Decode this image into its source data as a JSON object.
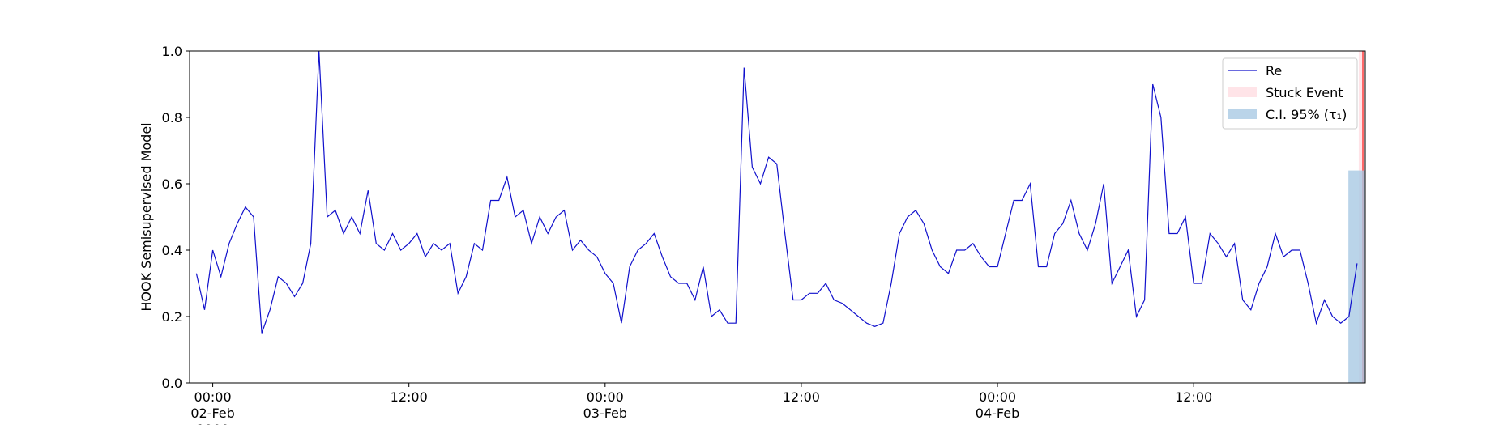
{
  "chart_data": {
    "type": "line",
    "ylabel": "HOOK Semisupervised Model",
    "x": [
      "1900-02-01 23:00",
      "1900-02-01 23:30",
      "1900-02-02 00:00",
      "1900-02-02 00:30",
      "1900-02-02 01:00",
      "1900-02-02 01:30",
      "1900-02-02 02:00",
      "1900-02-02 02:30",
      "1900-02-02 03:00",
      "1900-02-02 03:30",
      "1900-02-02 04:00",
      "1900-02-02 04:30",
      "1900-02-02 05:00",
      "1900-02-02 05:30",
      "1900-02-02 06:00",
      "1900-02-02 06:30",
      "1900-02-02 07:00",
      "1900-02-02 07:30",
      "1900-02-02 08:00",
      "1900-02-02 08:30",
      "1900-02-02 09:00",
      "1900-02-02 09:30",
      "1900-02-02 10:00",
      "1900-02-02 10:30",
      "1900-02-02 11:00",
      "1900-02-02 11:30",
      "1900-02-02 12:00",
      "1900-02-02 12:30",
      "1900-02-02 13:00",
      "1900-02-02 13:30",
      "1900-02-02 14:00",
      "1900-02-02 14:30",
      "1900-02-02 15:00",
      "1900-02-02 15:30",
      "1900-02-02 16:00",
      "1900-02-02 16:30",
      "1900-02-02 17:00",
      "1900-02-02 17:30",
      "1900-02-02 18:00",
      "1900-02-02 18:30",
      "1900-02-02 19:00",
      "1900-02-02 19:30",
      "1900-02-02 20:00",
      "1900-02-02 20:30",
      "1900-02-02 21:00",
      "1900-02-02 21:30",
      "1900-02-02 22:00",
      "1900-02-02 22:30",
      "1900-02-02 23:00",
      "1900-02-02 23:30",
      "1900-02-03 00:00",
      "1900-02-03 00:30",
      "1900-02-03 01:00",
      "1900-02-03 01:30",
      "1900-02-03 02:00",
      "1900-02-03 02:30",
      "1900-02-03 03:00",
      "1900-02-03 03:30",
      "1900-02-03 04:00",
      "1900-02-03 04:30",
      "1900-02-03 05:00",
      "1900-02-03 05:30",
      "1900-02-03 06:00",
      "1900-02-03 06:30",
      "1900-02-03 07:00",
      "1900-02-03 07:30",
      "1900-02-03 08:00",
      "1900-02-03 08:30",
      "1900-02-03 09:00",
      "1900-02-03 09:30",
      "1900-02-03 10:00",
      "1900-02-03 10:30",
      "1900-02-03 11:00",
      "1900-02-03 11:30",
      "1900-02-03 12:00",
      "1900-02-03 12:30",
      "1900-02-03 13:00",
      "1900-02-03 13:30",
      "1900-02-03 14:00",
      "1900-02-03 14:30",
      "1900-02-03 15:00",
      "1900-02-03 15:30",
      "1900-02-03 16:00",
      "1900-02-03 16:30",
      "1900-02-03 17:00",
      "1900-02-03 17:30",
      "1900-02-03 18:00",
      "1900-02-03 18:30",
      "1900-02-03 19:00",
      "1900-02-03 19:30",
      "1900-02-03 20:00",
      "1900-02-03 20:30",
      "1900-02-03 21:00",
      "1900-02-03 21:30",
      "1900-02-03 22:00",
      "1900-02-03 22:30",
      "1900-02-03 23:00",
      "1900-02-03 23:30",
      "1900-02-04 00:00",
      "1900-02-04 00:30",
      "1900-02-04 01:00",
      "1900-02-04 01:30",
      "1900-02-04 02:00",
      "1900-02-04 02:30",
      "1900-02-04 03:00",
      "1900-02-04 03:30",
      "1900-02-04 04:00",
      "1900-02-04 04:30",
      "1900-02-04 05:00",
      "1900-02-04 05:30",
      "1900-02-04 06:00",
      "1900-02-04 06:30",
      "1900-02-04 07:00",
      "1900-02-04 07:30",
      "1900-02-04 08:00",
      "1900-02-04 08:30",
      "1900-02-04 09:00",
      "1900-02-04 09:30",
      "1900-02-04 10:00",
      "1900-02-04 10:30",
      "1900-02-04 11:00",
      "1900-02-04 11:30",
      "1900-02-04 12:00",
      "1900-02-04 12:30",
      "1900-02-04 13:00",
      "1900-02-04 13:30",
      "1900-02-04 14:00",
      "1900-02-04 14:30",
      "1900-02-04 15:00",
      "1900-02-04 15:30",
      "1900-02-04 16:00",
      "1900-02-04 16:30",
      "1900-02-04 17:00",
      "1900-02-04 17:30",
      "1900-02-04 18:00",
      "1900-02-04 18:30",
      "1900-02-04 19:00",
      "1900-02-04 19:30",
      "1900-02-04 20:00",
      "1900-02-04 20:30",
      "1900-02-04 21:00",
      "1900-02-04 21:30",
      "1900-02-04 22:00"
    ],
    "series": [
      {
        "name": "Re",
        "color": "#1010cc",
        "values": [
          0.33,
          0.22,
          0.4,
          0.32,
          0.42,
          0.48,
          0.53,
          0.5,
          0.15,
          0.22,
          0.32,
          0.3,
          0.26,
          0.3,
          0.42,
          1.0,
          0.5,
          0.52,
          0.45,
          0.5,
          0.45,
          0.58,
          0.42,
          0.4,
          0.45,
          0.4,
          0.42,
          0.45,
          0.38,
          0.42,
          0.4,
          0.42,
          0.27,
          0.32,
          0.42,
          0.4,
          0.55,
          0.55,
          0.62,
          0.5,
          0.52,
          0.42,
          0.5,
          0.45,
          0.5,
          0.52,
          0.4,
          0.43,
          0.4,
          0.38,
          0.33,
          0.3,
          0.18,
          0.35,
          0.4,
          0.42,
          0.45,
          0.38,
          0.32,
          0.3,
          0.3,
          0.25,
          0.35,
          0.2,
          0.22,
          0.18,
          0.18,
          0.95,
          0.65,
          0.6,
          0.68,
          0.66,
          0.45,
          0.25,
          0.25,
          0.27,
          0.27,
          0.3,
          0.25,
          0.24,
          0.22,
          0.2,
          0.18,
          0.17,
          0.18,
          0.3,
          0.45,
          0.5,
          0.52,
          0.48,
          0.4,
          0.35,
          0.33,
          0.4,
          0.4,
          0.42,
          0.38,
          0.35,
          0.35,
          0.45,
          0.55,
          0.55,
          0.6,
          0.35,
          0.35,
          0.45,
          0.48,
          0.55,
          0.45,
          0.4,
          0.48,
          0.6,
          0.3,
          0.35,
          0.4,
          0.2,
          0.25,
          0.9,
          0.8,
          0.45,
          0.45,
          0.5,
          0.3,
          0.3,
          0.45,
          0.42,
          0.38,
          0.42,
          0.25,
          0.22,
          0.3,
          0.35,
          0.45,
          0.38,
          0.4,
          0.4,
          0.3,
          0.18,
          0.25,
          0.2,
          0.18,
          0.2,
          0.36
        ]
      }
    ],
    "spans": [
      {
        "name": "Stuck Event",
        "color": "#ffdde2",
        "edge": "#ff4040",
        "x": [
          "1900-02-04 22:06",
          "1900-02-04 22:30"
        ]
      },
      {
        "name": "C.I. 95% (τ₁)",
        "color": "#a9c9e4",
        "x": [
          "1900-02-04 21:28",
          "1900-02-04 22:30"
        ],
        "y": [
          0,
          0.64
        ]
      }
    ],
    "xlim": [
      "1900-02-01 22:35",
      "1900-02-04 22:30"
    ],
    "xticks": [
      {
        "value": "1900-02-02 00:00",
        "label": "00:00\n02-Feb\n1900"
      },
      {
        "value": "1900-02-02 12:00",
        "label": "12:00"
      },
      {
        "value": "1900-02-03 00:00",
        "label": "00:00\n03-Feb"
      },
      {
        "value": "1900-02-03 12:00",
        "label": "12:00"
      },
      {
        "value": "1900-02-04 00:00",
        "label": "00:00\n04-Feb"
      },
      {
        "value": "1900-02-04 12:00",
        "label": "12:00"
      }
    ],
    "ylim": [
      0,
      1
    ],
    "yticks": [
      {
        "value": 0,
        "label": "0.0"
      },
      {
        "value": 0.2,
        "label": "0.2"
      },
      {
        "value": 0.4,
        "label": "0.4"
      },
      {
        "value": 0.6,
        "label": "0.6"
      },
      {
        "value": 0.8,
        "label": "0.8"
      },
      {
        "value": 1,
        "label": "1.0"
      }
    ],
    "legend": "upper right"
  }
}
